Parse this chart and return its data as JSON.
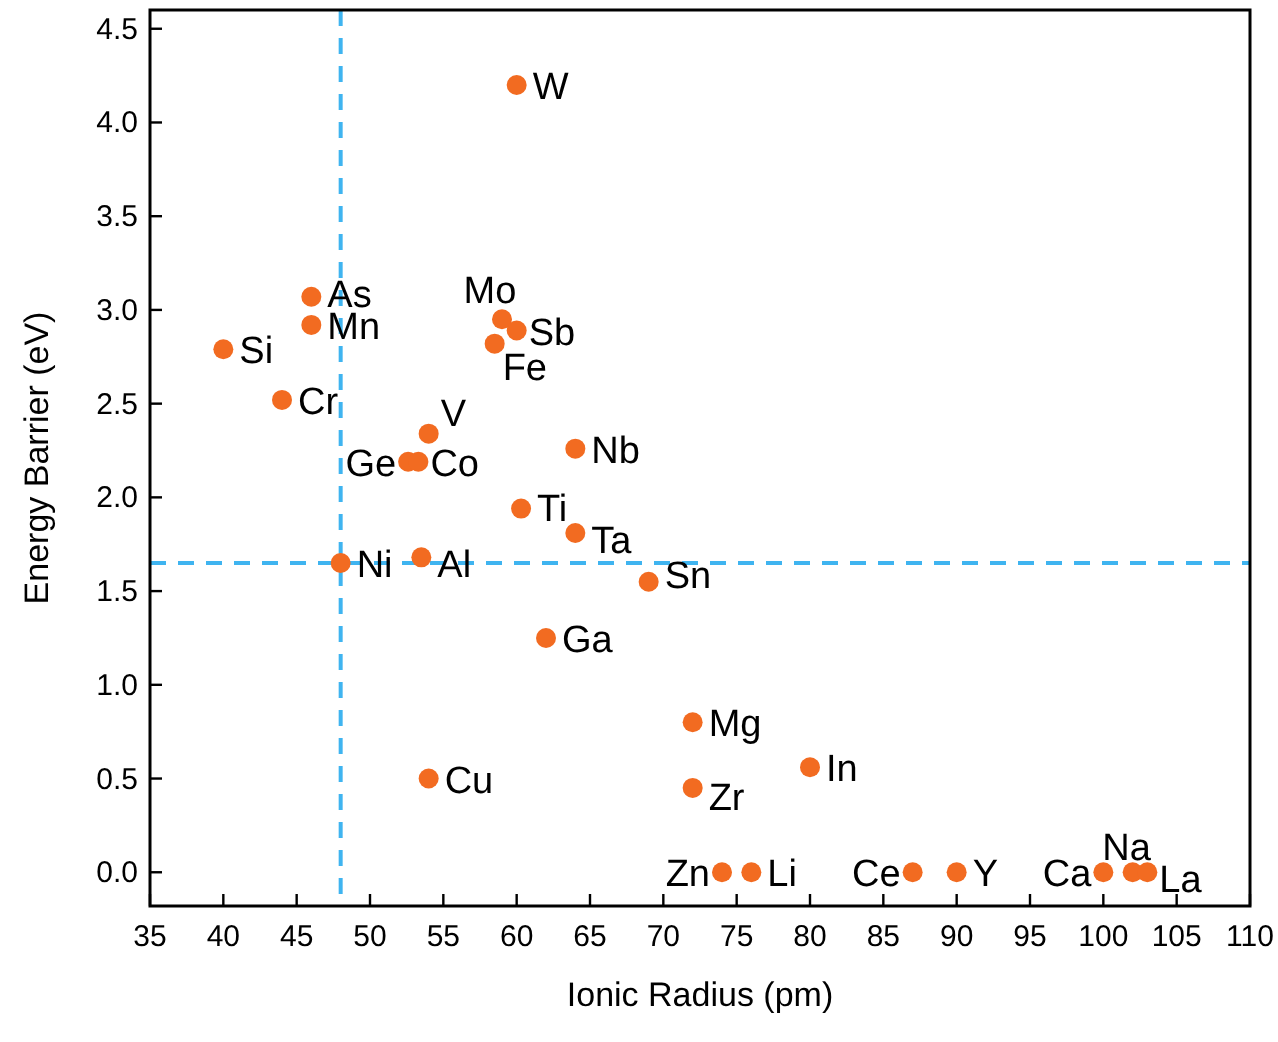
{
  "chart_data": {
    "type": "scatter",
    "xlabel": "Ionic Radius (pm)",
    "ylabel": "Energy Barrier (eV)",
    "xlim": [
      35,
      110
    ],
    "xticks": [
      35,
      40,
      45,
      50,
      55,
      60,
      65,
      70,
      75,
      80,
      85,
      90,
      95,
      100,
      105,
      110
    ],
    "ylim": [
      -0.18,
      4.6
    ],
    "yticks": [
      {
        "value": 0,
        "label": "0.0"
      },
      {
        "value": 0.5,
        "label": "0.5"
      },
      {
        "value": 1,
        "label": "1.0"
      },
      {
        "value": 1.5,
        "label": "1.5"
      },
      {
        "value": 2,
        "label": "2.0"
      },
      {
        "value": 2.5,
        "label": "2.5"
      },
      {
        "value": 3,
        "label": "3.0"
      },
      {
        "value": 3.5,
        "label": "3.5"
      },
      {
        "value": 4,
        "label": "4.0"
      },
      {
        "value": 4.5,
        "label": "4.5"
      }
    ],
    "grid": false,
    "marker": "circle",
    "series": [
      {
        "color": "#f26b21",
        "x": [
          60,
          46,
          46,
          40,
          44,
          59,
          60,
          58.5,
          54,
          52.6,
          53.3,
          64,
          60.3,
          64,
          48,
          53.5,
          69,
          62,
          72,
          54,
          72,
          80,
          74,
          76,
          87,
          90,
          100,
          102,
          103
        ],
        "values": [
          4.2,
          3.07,
          2.92,
          2.79,
          2.52,
          2.95,
          2.89,
          2.82,
          2.34,
          2.19,
          2.19,
          2.26,
          1.94,
          1.81,
          1.65,
          1.68,
          1.55,
          1.25,
          0.8,
          0.5,
          0.45,
          0.56,
          0,
          0,
          0,
          0,
          0,
          0,
          0
        ]
      }
    ],
    "annotations": [
      {
        "text": "W",
        "x": 60,
        "y": 4.2
      },
      {
        "text": "As",
        "x": 46,
        "y": 3.07
      },
      {
        "text": "Mn",
        "x": 46,
        "y": 2.92
      },
      {
        "text": "Si",
        "x": 40,
        "y": 2.79
      },
      {
        "text": "Cr",
        "x": 44,
        "y": 2.52
      },
      {
        "text": "Mo",
        "x": 59,
        "y": 2.95
      },
      {
        "text": "Sb",
        "x": 60,
        "y": 2.89
      },
      {
        "text": "Fe",
        "x": 58.5,
        "y": 2.82
      },
      {
        "text": "V",
        "x": 54,
        "y": 2.34
      },
      {
        "text": "Ge",
        "x": 52.6,
        "y": 2.19
      },
      {
        "text": "Co",
        "x": 53.3,
        "y": 2.19
      },
      {
        "text": "Nb",
        "x": 64,
        "y": 2.26
      },
      {
        "text": "Ti",
        "x": 60.3,
        "y": 1.94
      },
      {
        "text": "Ta",
        "x": 64,
        "y": 1.81
      },
      {
        "text": "Ni",
        "x": 48,
        "y": 1.65
      },
      {
        "text": "Al",
        "x": 53.5,
        "y": 1.68
      },
      {
        "text": "Sn",
        "x": 69,
        "y": 1.55
      },
      {
        "text": "Ga",
        "x": 62,
        "y": 1.25
      },
      {
        "text": "Mg",
        "x": 72,
        "y": 0.8
      },
      {
        "text": "Cu",
        "x": 54,
        "y": 0.5
      },
      {
        "text": "Zr",
        "x": 72,
        "y": 0.45
      },
      {
        "text": "In",
        "x": 80,
        "y": 0.56
      },
      {
        "text": "Zn",
        "x": 74,
        "y": 0
      },
      {
        "text": "Li",
        "x": 76,
        "y": 0
      },
      {
        "text": "Ce",
        "x": 87,
        "y": 0
      },
      {
        "text": "Y",
        "x": 90,
        "y": 0
      },
      {
        "text": "Ca",
        "x": 100,
        "y": 0
      },
      {
        "text": "Na",
        "x": 102,
        "y": 0
      },
      {
        "text": "La",
        "x": 103,
        "y": 0
      }
    ],
    "ref_lines": [
      {
        "axis": "x",
        "value": 48,
        "color": "#3fb4f0",
        "line_style": "dashed"
      },
      {
        "axis": "y",
        "value": 1.65,
        "color": "#3fb4f0",
        "line_style": "dashed"
      }
    ]
  }
}
